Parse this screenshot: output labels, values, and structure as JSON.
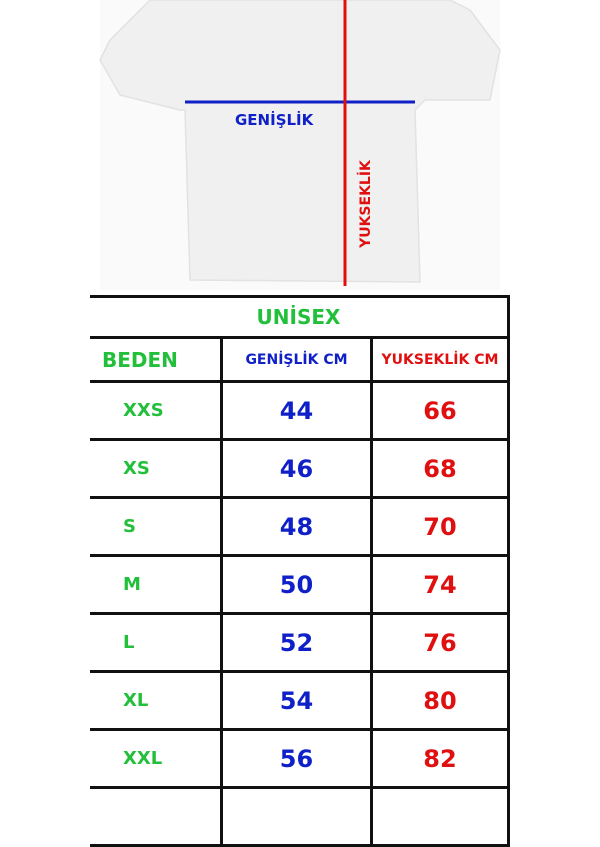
{
  "diagram": {
    "width_label": "GENİŞLİK",
    "length_label": "YUKSEKLİK",
    "width_line_color": "#1020c8",
    "length_line_color": "#e01010"
  },
  "table": {
    "title": "UNİSEX",
    "headers": [
      "BEDEN",
      "GENİŞLİK CM",
      "YUKSEKLİK CM"
    ],
    "rows": [
      {
        "size": "XXS",
        "width": "44",
        "length": "66"
      },
      {
        "size": "XS",
        "width": "46",
        "length": "68"
      },
      {
        "size": "S",
        "width": "48",
        "length": "70"
      },
      {
        "size": "M",
        "width": "50",
        "length": "74"
      },
      {
        "size": "L",
        "width": "52",
        "length": "76"
      },
      {
        "size": "XL",
        "width": "54",
        "length": "80"
      },
      {
        "size": "XXL",
        "width": "56",
        "length": "82"
      }
    ]
  },
  "colors": {
    "size": "#22c03a",
    "width": "#1020c8",
    "length": "#e01010"
  }
}
